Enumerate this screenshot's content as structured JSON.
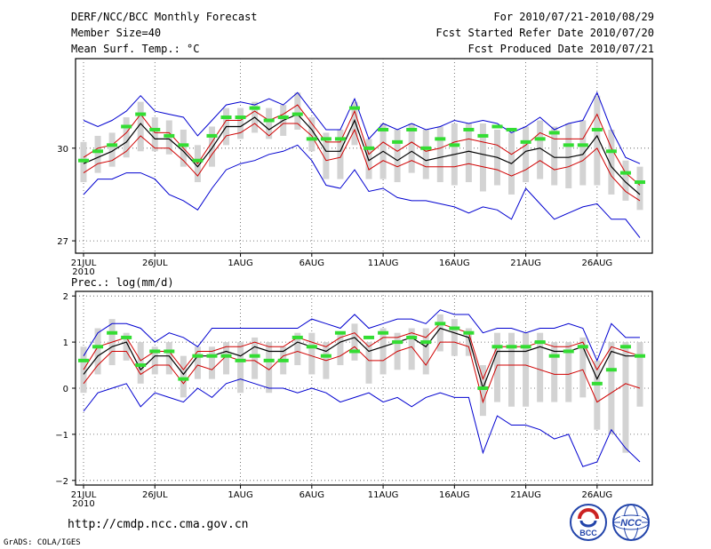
{
  "header": {
    "title": "DERF/NCC/BCC Monthly Forecast",
    "member_size": "Member Size=40",
    "variable_top": "Mean Surf. Temp.: °C",
    "forecast_period": "For 2010/07/21-2010/08/29",
    "started_date": "Fcst Started Refer Date 2010/07/20",
    "produced_date": "Fcst Produced Date 2010/07/21"
  },
  "footer": {
    "url": "http://cmdp.ncc.cma.gov.cn",
    "grads_credit": "GrADS: COLA/IGES",
    "logo_bcc_text": "BCC",
    "logo_ncc_text": "NCC"
  },
  "colors": {
    "spread": "#d3d3d3",
    "envelope": "#0000d0",
    "inner": "#d00000",
    "mean": "#000000",
    "member": "#33dd33"
  },
  "chart_data": [
    {
      "type": "line",
      "id": "temperature",
      "title": "Mean Surf. Temp.: °C",
      "x_tick_labels": [
        "21JUL",
        "26JUL",
        "1AUG",
        "6AUG",
        "11AUG",
        "16AUG",
        "21AUG",
        "26AUG"
      ],
      "x_tick_days": [
        0,
        5,
        11,
        16,
        21,
        26,
        31,
        36
      ],
      "x_year_label": "2010",
      "days": 40,
      "ylim": [
        26.6,
        32.9
      ],
      "y_ticks": [
        27,
        30
      ],
      "series": [
        {
          "name": "max",
          "values": [
            30.9,
            30.7,
            30.9,
            31.2,
            31.7,
            31.2,
            31.1,
            31.0,
            30.4,
            30.9,
            31.4,
            31.5,
            31.4,
            31.6,
            31.4,
            31.8,
            31.2,
            30.6,
            30.6,
            31.6,
            30.3,
            30.8,
            30.6,
            30.8,
            30.6,
            30.7,
            30.9,
            30.8,
            30.9,
            30.8,
            30.5,
            30.7,
            31.0,
            30.6,
            30.8,
            30.9,
            31.8,
            30.6,
            29.7,
            29.5
          ]
        },
        {
          "name": "min",
          "values": [
            28.5,
            29.0,
            29.0,
            29.2,
            29.2,
            29.0,
            28.5,
            28.3,
            28.0,
            28.7,
            29.3,
            29.5,
            29.6,
            29.8,
            29.9,
            30.1,
            29.6,
            28.8,
            28.7,
            29.3,
            28.6,
            28.7,
            28.4,
            28.3,
            28.3,
            28.2,
            28.1,
            27.9,
            28.1,
            28.0,
            27.7,
            28.7,
            28.2,
            27.7,
            27.9,
            28.1,
            28.2,
            27.7,
            27.7,
            27.1
          ]
        },
        {
          "name": "upper",
          "values": [
            29.7,
            30.0,
            30.1,
            30.5,
            31.1,
            30.5,
            30.5,
            30.0,
            29.5,
            30.2,
            30.9,
            30.9,
            31.2,
            30.9,
            31.1,
            31.4,
            30.8,
            30.2,
            30.2,
            31.2,
            29.8,
            30.2,
            29.9,
            30.2,
            29.9,
            30.0,
            30.2,
            30.3,
            30.2,
            30.1,
            29.8,
            30.1,
            30.5,
            30.3,
            30.3,
            30.3,
            31.1,
            30.0,
            29.2,
            28.8
          ]
        },
        {
          "name": "lower",
          "values": [
            29.2,
            29.5,
            29.6,
            29.9,
            30.4,
            30.0,
            30.0,
            29.6,
            29.1,
            29.8,
            30.4,
            30.5,
            30.8,
            30.4,
            30.8,
            30.8,
            30.4,
            29.6,
            29.7,
            30.6,
            29.3,
            29.6,
            29.4,
            29.6,
            29.4,
            29.4,
            29.4,
            29.5,
            29.4,
            29.3,
            29.1,
            29.3,
            29.6,
            29.3,
            29.4,
            29.6,
            30.0,
            29.1,
            28.6,
            28.3
          ]
        },
        {
          "name": "mean",
          "values": [
            29.5,
            29.7,
            29.9,
            30.2,
            30.8,
            30.3,
            30.3,
            29.9,
            29.4,
            30.0,
            30.7,
            30.7,
            31.0,
            30.6,
            30.9,
            31.1,
            30.6,
            29.9,
            29.9,
            30.9,
            29.6,
            29.9,
            29.6,
            29.9,
            29.6,
            29.7,
            29.8,
            29.9,
            29.8,
            29.7,
            29.5,
            29.9,
            30.0,
            29.7,
            29.7,
            29.8,
            30.4,
            29.4,
            28.9,
            28.5
          ]
        },
        {
          "name": "member",
          "values": [
            29.6,
            29.9,
            30.1,
            30.7,
            31.1,
            30.6,
            30.4,
            30.1,
            29.6,
            30.4,
            31.0,
            31.0,
            31.3,
            30.9,
            31.0,
            31.1,
            30.3,
            30.3,
            30.3,
            31.3,
            30.0,
            30.6,
            30.2,
            30.6,
            30.0,
            30.3,
            30.1,
            30.6,
            30.4,
            30.7,
            30.6,
            30.2,
            30.3,
            30.5,
            30.1,
            30.1,
            30.6,
            29.9,
            29.2,
            28.9
          ]
        },
        {
          "name": "box_top",
          "values": [
            30.2,
            30.4,
            30.5,
            31.0,
            31.5,
            31.0,
            30.9,
            30.6,
            30.1,
            30.7,
            31.3,
            31.3,
            31.5,
            31.3,
            31.4,
            31.8,
            31.0,
            30.5,
            30.6,
            31.5,
            30.3,
            30.8,
            30.6,
            30.8,
            30.6,
            30.7,
            30.8,
            30.8,
            30.8,
            30.6,
            30.5,
            30.7,
            30.9,
            30.7,
            30.8,
            30.9,
            31.7,
            30.6,
            29.6,
            29.4
          ]
        },
        {
          "name": "box_bottom",
          "values": [
            28.9,
            29.2,
            29.4,
            29.7,
            29.9,
            29.9,
            29.8,
            29.4,
            28.9,
            29.4,
            30.1,
            30.3,
            30.5,
            30.3,
            30.4,
            30.6,
            29.9,
            29.0,
            29.0,
            30.1,
            29.0,
            29.0,
            28.9,
            29.2,
            29.0,
            28.9,
            28.8,
            28.9,
            28.6,
            28.8,
            28.5,
            28.9,
            29.0,
            28.8,
            28.7,
            28.8,
            28.8,
            28.5,
            28.3,
            28.0
          ]
        }
      ]
    },
    {
      "type": "line",
      "id": "precipitation",
      "title": "Prec.: log(mm/d)",
      "x_tick_labels": [
        "21JUL",
        "26JUL",
        "1AUG",
        "6AUG",
        "11AUG",
        "16AUG",
        "21AUG",
        "26AUG"
      ],
      "x_tick_days": [
        0,
        5,
        11,
        16,
        21,
        26,
        31,
        36
      ],
      "x_year_label": "2010",
      "days": 40,
      "ylim": [
        -2.1,
        2.1
      ],
      "y_ticks": [
        -2,
        -1,
        0,
        1,
        2
      ],
      "series": [
        {
          "name": "max",
          "values": [
            0.7,
            1.2,
            1.4,
            1.4,
            1.3,
            1.0,
            1.2,
            1.1,
            0.9,
            1.3,
            1.3,
            1.3,
            1.3,
            1.3,
            1.3,
            1.3,
            1.5,
            1.4,
            1.3,
            1.6,
            1.3,
            1.4,
            1.5,
            1.5,
            1.4,
            1.7,
            1.6,
            1.6,
            1.2,
            1.3,
            1.3,
            1.2,
            1.3,
            1.3,
            1.4,
            1.3,
            0.6,
            1.4,
            1.1,
            1.1
          ]
        },
        {
          "name": "min",
          "values": [
            -0.5,
            -0.1,
            0.0,
            0.1,
            -0.4,
            -0.1,
            -0.2,
            -0.3,
            0.0,
            -0.2,
            0.1,
            0.2,
            0.1,
            0.0,
            0.0,
            -0.1,
            0.0,
            -0.1,
            -0.3,
            -0.2,
            -0.1,
            -0.3,
            -0.2,
            -0.4,
            -0.2,
            -0.1,
            -0.2,
            -0.2,
            -1.4,
            -0.6,
            -0.8,
            -0.8,
            -0.9,
            -1.1,
            -1.0,
            -1.7,
            -1.6,
            -0.9,
            -1.3,
            -1.6
          ]
        },
        {
          "name": "upper",
          "values": [
            0.4,
            0.9,
            1.0,
            1.1,
            0.6,
            0.8,
            0.8,
            0.4,
            0.8,
            0.8,
            0.9,
            0.9,
            1.0,
            0.9,
            0.9,
            1.1,
            1.0,
            0.9,
            1.1,
            1.2,
            0.9,
            1.1,
            1.1,
            1.2,
            1.1,
            1.4,
            1.3,
            1.2,
            0.2,
            0.9,
            0.9,
            0.9,
            1.0,
            0.9,
            0.9,
            1.0,
            0.4,
            0.9,
            0.8,
            0.7
          ]
        },
        {
          "name": "lower",
          "values": [
            0.1,
            0.5,
            0.8,
            0.8,
            0.3,
            0.5,
            0.5,
            0.1,
            0.5,
            0.4,
            0.7,
            0.6,
            0.6,
            0.4,
            0.7,
            0.8,
            0.7,
            0.6,
            0.7,
            0.9,
            0.6,
            0.6,
            0.8,
            0.9,
            0.5,
            1.0,
            1.0,
            0.9,
            -0.3,
            0.5,
            0.5,
            0.5,
            0.4,
            0.3,
            0.3,
            0.4,
            -0.3,
            -0.1,
            0.1,
            0.0
          ]
        },
        {
          "name": "mean",
          "values": [
            0.3,
            0.7,
            0.9,
            1.0,
            0.4,
            0.7,
            0.7,
            0.3,
            0.7,
            0.7,
            0.8,
            0.7,
            0.9,
            0.8,
            0.8,
            1.0,
            0.9,
            0.8,
            1.0,
            1.1,
            0.8,
            0.9,
            1.0,
            1.1,
            0.9,
            1.3,
            1.2,
            1.1,
            0.0,
            0.8,
            0.8,
            0.8,
            0.9,
            0.8,
            0.8,
            0.9,
            0.2,
            0.8,
            0.7,
            0.7
          ]
        },
        {
          "name": "member",
          "values": [
            0.6,
            0.9,
            1.2,
            1.1,
            0.5,
            0.8,
            0.8,
            0.2,
            0.7,
            0.7,
            0.7,
            0.6,
            0.7,
            0.6,
            0.6,
            1.1,
            0.9,
            0.7,
            1.2,
            0.8,
            1.1,
            1.2,
            1.0,
            1.1,
            1.0,
            1.4,
            1.3,
            1.2,
            0.0,
            0.9,
            0.9,
            0.9,
            1.0,
            0.7,
            0.8,
            0.9,
            0.1,
            0.4,
            0.9,
            0.7
          ]
        },
        {
          "name": "box_top",
          "values": [
            0.9,
            1.3,
            1.5,
            1.2,
            1.0,
            0.9,
            1.0,
            0.7,
            0.9,
            0.9,
            1.0,
            1.0,
            1.1,
            1.0,
            0.9,
            1.2,
            1.2,
            1.0,
            1.2,
            1.4,
            1.0,
            1.3,
            1.2,
            1.3,
            1.3,
            1.6,
            1.5,
            1.3,
            0.5,
            1.2,
            1.2,
            1.2,
            1.2,
            1.0,
            1.0,
            1.1,
            0.6,
            1.0,
            1.0,
            1.0
          ]
        },
        {
          "name": "box_bottom",
          "values": [
            -0.1,
            0.3,
            0.5,
            0.6,
            0.1,
            0.3,
            0.3,
            -0.2,
            0.2,
            0.2,
            0.3,
            -0.1,
            0.2,
            -0.1,
            0.3,
            0.5,
            0.3,
            0.2,
            0.5,
            0.6,
            0.1,
            0.3,
            0.4,
            0.4,
            0.3,
            0.8,
            0.7,
            0.7,
            -0.6,
            -0.3,
            -0.4,
            -0.4,
            -0.3,
            -0.3,
            -0.3,
            -0.2,
            -0.9,
            -1.0,
            -1.4,
            -0.4
          ]
        }
      ]
    }
  ]
}
